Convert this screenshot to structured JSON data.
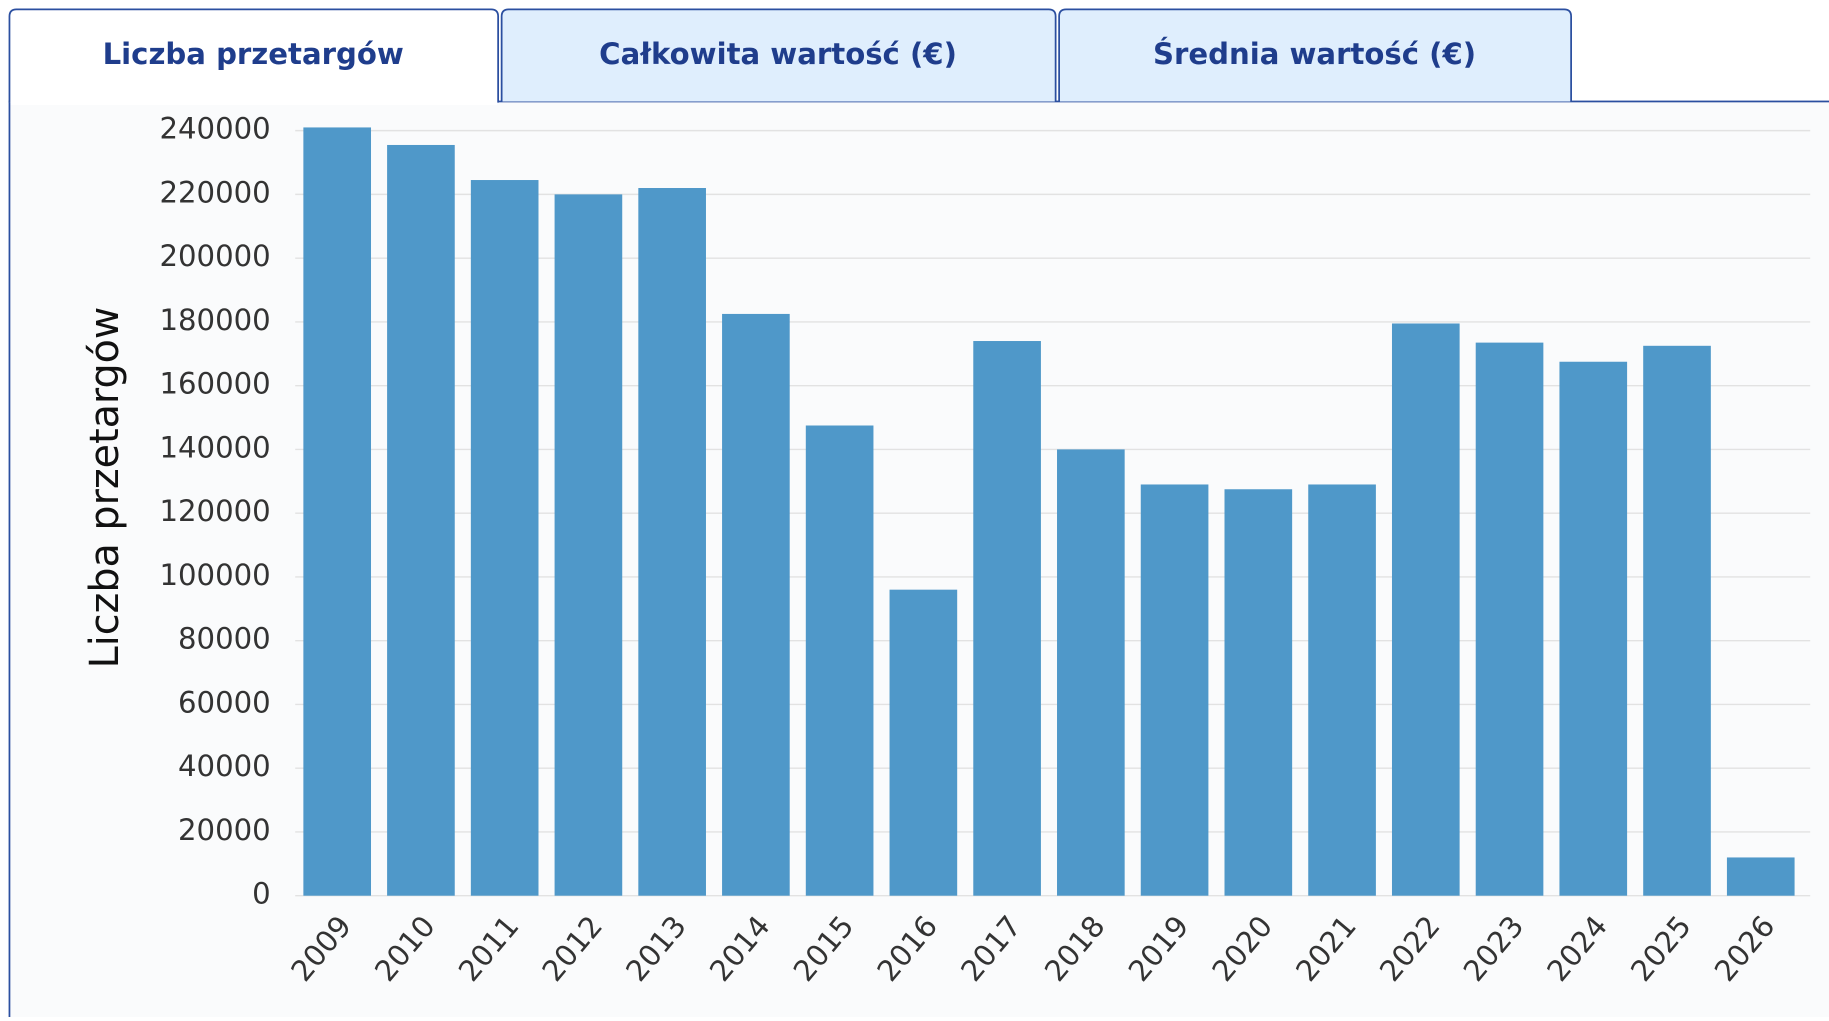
{
  "tabs": [
    "Liczba przetargów",
    "Całkowita wartość (€)",
    "Średnia wartość (€)"
  ],
  "chart_data": {
    "type": "bar",
    "y_label": "Liczba przetargów",
    "categories": [
      "2009",
      "2010",
      "2011",
      "2012",
      "2013",
      "2014",
      "2015",
      "2016",
      "2017",
      "2018",
      "2019",
      "2020",
      "2021",
      "2022",
      "2023",
      "2024",
      "2025",
      "2026"
    ],
    "values": [
      241000,
      235500,
      224500,
      220000,
      222000,
      182500,
      147500,
      96000,
      174000,
      140000,
      129000,
      127500,
      129000,
      179500,
      173500,
      167500,
      172500,
      12000
    ],
    "color": "#4f98c9",
    "ylim": [
      0,
      240000
    ],
    "yticks": [
      0,
      20000,
      40000,
      60000,
      80000,
      100000,
      120000,
      140000,
      160000,
      180000,
      200000,
      220000,
      240000
    ],
    "grid": true
  }
}
